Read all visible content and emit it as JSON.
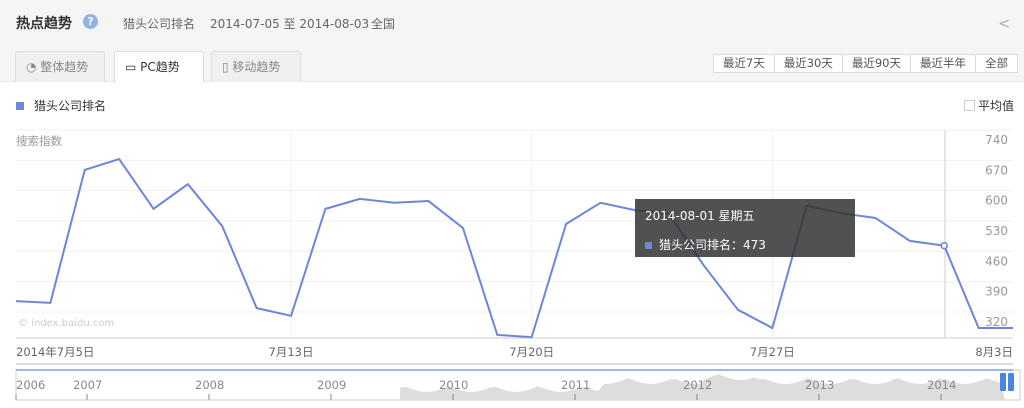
{
  "header": {
    "title": "热点趋势",
    "keyword": "猎头公司排名",
    "date_range": "2014-07-05 至 2014-08-03",
    "region": "全国"
  },
  "tabs": [
    {
      "label": "整体趋势",
      "icon": "pie-icon"
    },
    {
      "label": "PC趋势",
      "icon": "monitor-icon",
      "active": true
    },
    {
      "label": "移动趋势",
      "icon": "mobile-icon"
    }
  ],
  "ranges": [
    "最近7天",
    "最近30天",
    "最近90天",
    "最近半年",
    "全部"
  ],
  "legend": {
    "label": "猎头公司排名",
    "color": "#6c87d8"
  },
  "average_label": "平均值",
  "watermark": "© index.baidu.com",
  "tooltip": {
    "date": "2014-08-01 星期五",
    "label": "猎头公司排名：",
    "value": "473"
  },
  "timeline": {
    "years": [
      "2006",
      "2007",
      "2008",
      "2009",
      "2010",
      "2011",
      "2012",
      "2013",
      "2014"
    ]
  },
  "chart_data": {
    "type": "line",
    "ylabel": "搜索指数",
    "ylim": [
      250,
      740
    ],
    "yticks": [
      740,
      670,
      600,
      530,
      460,
      390,
      320
    ],
    "xticks": [
      "2014年7月5日",
      "7月13日",
      "7月20日",
      "7月27日",
      "8月3日"
    ],
    "x_start": "2014-07-05",
    "x_end": "2014-08-03",
    "series": [
      {
        "name": "猎头公司排名",
        "color": "#6c87d8",
        "values": [
          345,
          341,
          648,
          673,
          558,
          615,
          518,
          329,
          311,
          558,
          581,
          572,
          576,
          514,
          267,
          262,
          523,
          572,
          555,
          546,
          428,
          325,
          283,
          565,
          548,
          537,
          484,
          473,
          283,
          283
        ]
      }
    ]
  }
}
